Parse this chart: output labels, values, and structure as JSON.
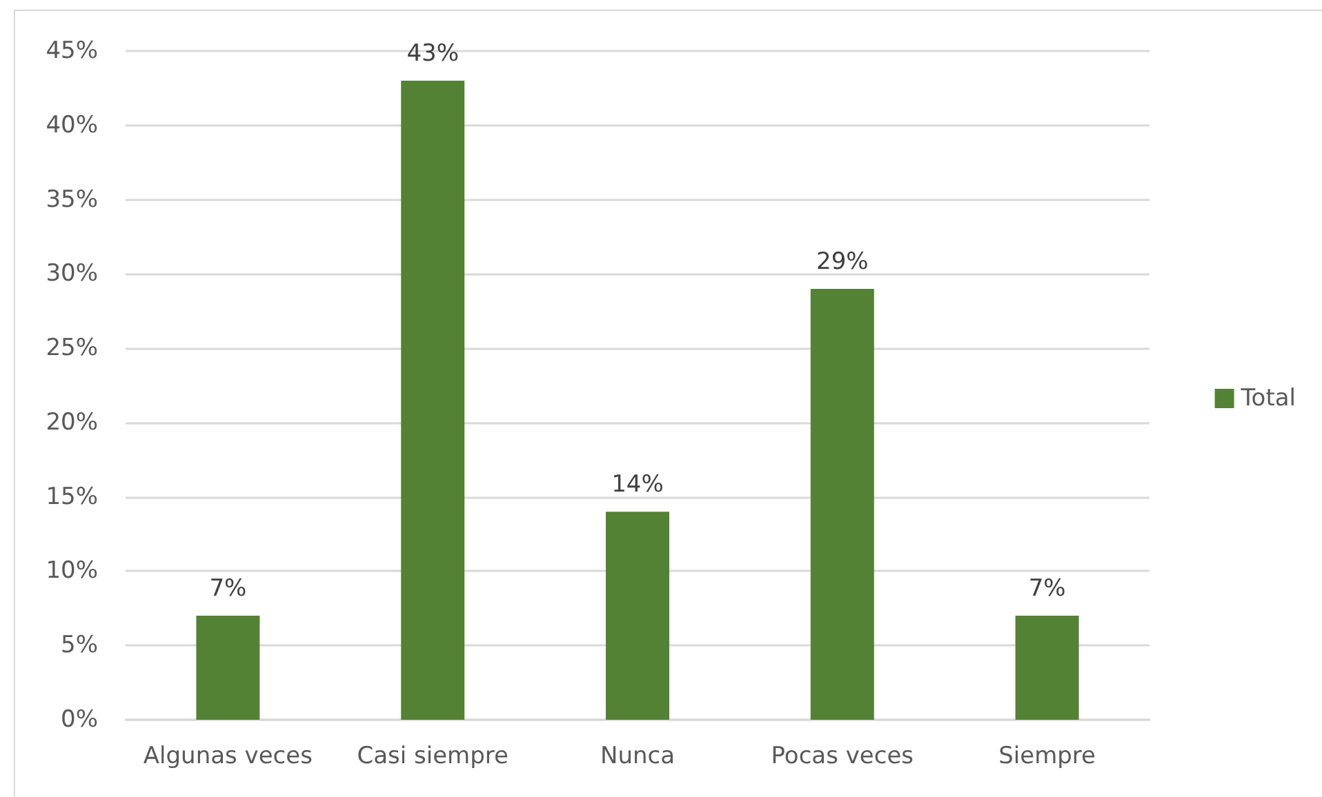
{
  "chart_data": {
    "type": "bar",
    "categories": [
      "Algunas veces",
      "Casi siempre",
      "Nunca",
      "Pocas veces",
      "Siempre"
    ],
    "series": [
      {
        "name": "Total",
        "color": "#548235",
        "values": [
          7,
          43,
          14,
          29,
          7
        ]
      }
    ],
    "value_labels": [
      "7%",
      "43%",
      "14%",
      "29%",
      "7%"
    ],
    "ylim": [
      0,
      45
    ],
    "yticks": [
      {
        "value": 0,
        "label": "0%"
      },
      {
        "value": 5,
        "label": "5%"
      },
      {
        "value": 10,
        "label": "10%"
      },
      {
        "value": 15,
        "label": "15%"
      },
      {
        "value": 20,
        "label": "20%"
      },
      {
        "value": 25,
        "label": "25%"
      },
      {
        "value": 30,
        "label": "30%"
      },
      {
        "value": 35,
        "label": "35%"
      },
      {
        "value": 40,
        "label": "40%"
      },
      {
        "value": 45,
        "label": "45%"
      }
    ],
    "grid": "y",
    "legend": "right"
  }
}
